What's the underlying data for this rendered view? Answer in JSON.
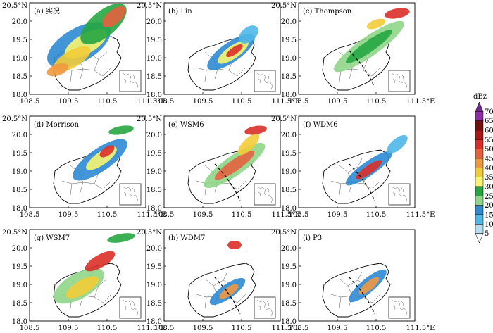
{
  "panels": [
    {
      "label": "(a) 实况"
    },
    {
      "label": "(b) Lin"
    },
    {
      "label": "(c) Thompson"
    },
    {
      "label": "(d) Morrison"
    },
    {
      "label": "(e) WSM6"
    },
    {
      "label": "(f) WDM6"
    },
    {
      "label": "(g) WSM7"
    },
    {
      "label": "(h) WDM7"
    },
    {
      "label": "(i) P3"
    }
  ],
  "x_ticks": [
    "108.5",
    "109.5",
    "110.5",
    "111.5°E"
  ],
  "y_ticks": [
    "20.5°N",
    "20.0",
    "19.5",
    "19.0",
    "18.5",
    "18.0"
  ],
  "colorbar": {
    "unit": "dBz",
    "levels": [
      "5",
      "10",
      "15",
      "20",
      "25",
      "30",
      "35",
      "40",
      "45",
      "50",
      "55",
      "60",
      "65",
      "70"
    ],
    "colors": [
      "#f4f8fb",
      "#b4def2",
      "#4fb8e8",
      "#2e8ad1",
      "#8fd68a",
      "#25a641",
      "#f8f570",
      "#f2cc38",
      "#ef9840",
      "#e4623e",
      "#da2f29",
      "#ad1718",
      "#73110f",
      "#8f2fa5",
      "#6b2a8c"
    ]
  }
}
